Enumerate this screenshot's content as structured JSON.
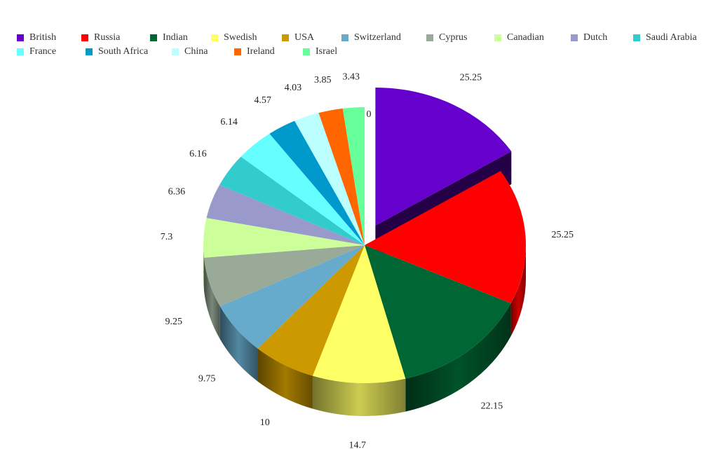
{
  "chart_data": {
    "type": "pie",
    "style": "3d",
    "title": "",
    "legend_position": "top",
    "exploded_slice": "British",
    "slices": [
      {
        "name": "British",
        "value": 25.25,
        "color": "#6600CC"
      },
      {
        "name": "Russia",
        "value": 25.25,
        "color": "#FF0000"
      },
      {
        "name": "Indian",
        "value": 22.15,
        "color": "#006633"
      },
      {
        "name": "Swedish",
        "value": 14.7,
        "color": "#FFFF66"
      },
      {
        "name": "USA",
        "value": 10,
        "color": "#CC9900"
      },
      {
        "name": "Switzerland",
        "value": 9.75,
        "color": "#66AACC"
      },
      {
        "name": "Cyprus",
        "value": 9.25,
        "color": "#99AA99"
      },
      {
        "name": "Canadian",
        "value": 7.3,
        "color": "#CCFF99"
      },
      {
        "name": "Dutch",
        "value": 6.36,
        "color": "#9999CC"
      },
      {
        "name": "Saudi Arabia",
        "value": 6.16,
        "color": "#33CCCC"
      },
      {
        "name": "France",
        "value": 6.14,
        "color": "#66FFFF"
      },
      {
        "name": "South Africa",
        "value": 4.57,
        "color": "#0099CC"
      },
      {
        "name": "China",
        "value": 4.03,
        "color": "#BBFFFF"
      },
      {
        "name": "Ireland",
        "value": 3.85,
        "color": "#FF6600"
      },
      {
        "name": "Israel",
        "value": 3.43,
        "color": "#66FF99"
      }
    ],
    "zero_label": "0"
  }
}
